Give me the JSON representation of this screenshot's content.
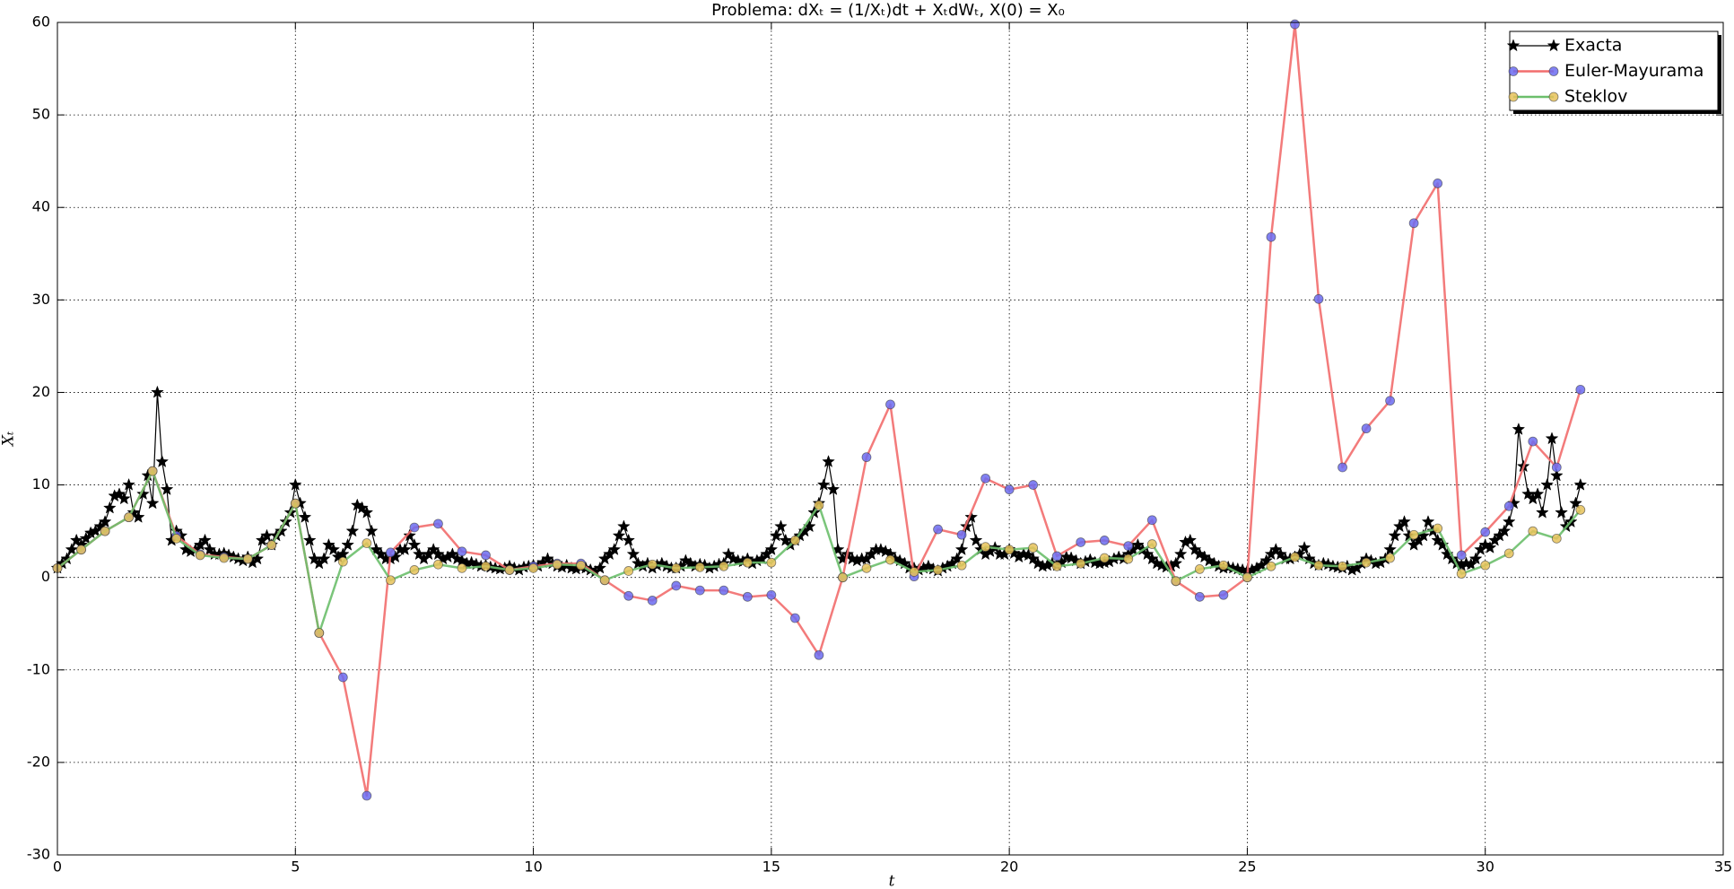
{
  "chart_data": {
    "type": "line",
    "title": "Problema: dXₜ = (1/Xₜ)dt + XₜdWₜ,     X(0) = X₀",
    "x_label": "t",
    "y_label": "Xₜ",
    "xlim": [
      0,
      35
    ],
    "ylim": [
      -30,
      60
    ],
    "xticks": [
      0,
      5,
      10,
      15,
      20,
      25,
      30,
      35
    ],
    "yticks": [
      -30,
      -20,
      -10,
      0,
      10,
      20,
      30,
      40,
      50,
      60
    ],
    "grid": true,
    "legend": "upper right",
    "series": [
      {
        "name": "Exacta",
        "color": "#000000",
        "marker": "star",
        "marker_color": "#000000",
        "x": [
          0,
          0.1,
          0.2,
          0.3,
          0.4,
          0.5,
          0.6,
          0.7,
          0.8,
          0.9,
          1,
          1.1,
          1.2,
          1.3,
          1.4,
          1.5,
          1.6,
          1.7,
          1.8,
          1.9,
          2,
          2.1,
          2.2,
          2.3,
          2.4,
          2.5,
          2.6,
          2.7,
          2.8,
          2.9,
          3,
          3.1,
          3.2,
          3.3,
          3.4,
          3.5,
          3.6,
          3.7,
          3.8,
          3.9,
          4,
          4.1,
          4.2,
          4.3,
          4.4,
          4.5,
          4.6,
          4.7,
          4.8,
          4.9,
          5,
          5.1,
          5.2,
          5.3,
          5.4,
          5.5,
          5.6,
          5.7,
          5.8,
          5.9,
          6,
          6.1,
          6.2,
          6.3,
          6.4,
          6.5,
          6.6,
          6.7,
          6.8,
          6.9,
          7,
          7.1,
          7.2,
          7.3,
          7.4,
          7.5,
          7.6,
          7.7,
          7.8,
          7.9,
          8,
          8.1,
          8.2,
          8.3,
          8.4,
          8.5,
          8.6,
          8.7,
          8.8,
          8.9,
          9,
          9.1,
          9.2,
          9.3,
          9.4,
          9.5,
          9.6,
          9.7,
          9.8,
          9.9,
          10,
          10.1,
          10.2,
          10.3,
          10.4,
          10.5,
          10.6,
          10.7,
          10.8,
          10.9,
          11,
          11.1,
          11.2,
          11.3,
          11.4,
          11.5,
          11.6,
          11.7,
          11.8,
          11.9,
          12,
          12.1,
          12.2,
          12.3,
          12.4,
          12.5,
          12.6,
          12.7,
          12.8,
          12.9,
          13,
          13.1,
          13.2,
          13.3,
          13.4,
          13.5,
          13.6,
          13.7,
          13.8,
          13.9,
          14,
          14.1,
          14.2,
          14.3,
          14.4,
          14.5,
          14.6,
          14.7,
          14.8,
          14.9,
          15,
          15.1,
          15.2,
          15.3,
          15.4,
          15.5,
          15.6,
          15.7,
          15.8,
          15.9,
          16,
          16.1,
          16.2,
          16.3,
          16.4,
          16.5,
          16.6,
          16.7,
          16.8,
          16.9,
          17,
          17.1,
          17.2,
          17.3,
          17.4,
          17.5,
          17.6,
          17.7,
          17.8,
          17.9,
          18,
          18.1,
          18.2,
          18.3,
          18.4,
          18.5,
          18.6,
          18.7,
          18.8,
          18.9,
          19,
          19.1,
          19.2,
          19.3,
          19.4,
          19.5,
          19.6,
          19.7,
          19.8,
          19.9,
          20,
          20.1,
          20.2,
          20.3,
          20.4,
          20.5,
          20.6,
          20.7,
          20.8,
          20.9,
          21,
          21.1,
          21.2,
          21.3,
          21.4,
          21.5,
          21.6,
          21.7,
          21.8,
          21.9,
          22,
          22.1,
          22.2,
          22.3,
          22.4,
          22.5,
          22.6,
          22.7,
          22.8,
          22.9,
          23,
          23.1,
          23.2,
          23.3,
          23.4,
          23.5,
          23.6,
          23.7,
          23.8,
          23.9,
          24,
          24.1,
          24.2,
          24.3,
          24.4,
          24.5,
          24.6,
          24.7,
          24.8,
          24.9,
          25,
          25.1,
          25.2,
          25.3,
          25.4,
          25.5,
          25.6,
          25.7,
          25.8,
          25.9,
          26,
          26.1,
          26.2,
          26.3,
          26.4,
          26.5,
          26.6,
          26.7,
          26.8,
          26.9,
          27,
          27.1,
          27.2,
          27.3,
          27.4,
          27.5,
          27.6,
          27.7,
          27.8,
          27.9,
          28,
          28.1,
          28.2,
          28.3,
          28.4,
          28.5,
          28.6,
          28.7,
          28.8,
          28.9,
          29,
          29.1,
          29.2,
          29.3,
          29.4,
          29.5,
          29.6,
          29.7,
          29.8,
          29.9,
          30,
          30.1,
          30.2,
          30.3,
          30.4,
          30.5,
          30.6,
          30.7,
          30.8,
          30.9,
          31,
          31.1,
          31.2,
          31.3,
          31.4,
          31.5,
          31.6,
          31.7,
          31.8,
          31.9,
          32
        ],
        "values": [
          1,
          1.5,
          2,
          3,
          4,
          3.5,
          4.2,
          4.8,
          5,
          5.5,
          6,
          7.5,
          8.8,
          9,
          8.5,
          10,
          7,
          6.5,
          9,
          11,
          8,
          20,
          12.5,
          9.5,
          4,
          5,
          4.5,
          3,
          2.8,
          3,
          3.5,
          4,
          3,
          2.5,
          2.5,
          2.6,
          2.4,
          2.2,
          2,
          1.8,
          2.2,
          1.6,
          2,
          4,
          4.5,
          3.5,
          4.5,
          5,
          6,
          7,
          10,
          8,
          6.5,
          4,
          2,
          1.5,
          2,
          3.5,
          3,
          2.2,
          2.5,
          3.5,
          5,
          7.8,
          7.5,
          7,
          5,
          3,
          2.5,
          2,
          2,
          2.2,
          3,
          3,
          4.5,
          3.5,
          2.5,
          2,
          2.5,
          3,
          2.5,
          2,
          2.2,
          2.5,
          2,
          1.8,
          1.5,
          1.6,
          1.4,
          1.2,
          1.3,
          1.1,
          1,
          0.9,
          1,
          1.2,
          1,
          0.8,
          1.1,
          1.2,
          1.3,
          1.2,
          1.6,
          2,
          1.5,
          1.2,
          1.1,
          1.3,
          1,
          0.9,
          1.1,
          1,
          0.8,
          0.6,
          1,
          2,
          2.5,
          3,
          4.5,
          5.5,
          4,
          2.5,
          1.5,
          1.2,
          1.5,
          1,
          1.3,
          1.5,
          1.2,
          1,
          1,
          1.2,
          1.8,
          1.5,
          1.2,
          1.4,
          1.3,
          1,
          1.2,
          1.4,
          1.5,
          2.5,
          2,
          1.8,
          1.7,
          2,
          1.5,
          1.8,
          2,
          2.5,
          3,
          4.5,
          5.5,
          4,
          3.5,
          4,
          4.5,
          5,
          5.5,
          7,
          8,
          10,
          12.5,
          9.5,
          3,
          2,
          2.5,
          2,
          1.8,
          2,
          2,
          2.5,
          3,
          3,
          2.8,
          2.5,
          2,
          1.8,
          1.5,
          1,
          1,
          0.8,
          1,
          1.2,
          0.9,
          0.7,
          1,
          1.2,
          1.5,
          2,
          3,
          5.5,
          6.5,
          4,
          3,
          2.5,
          2.8,
          3.2,
          2.5,
          2.5,
          3,
          2.6,
          2.2,
          2.5,
          2.4,
          2,
          1.5,
          1.2,
          1.3,
          1.5,
          1.3,
          1.6,
          2.2,
          2.1,
          1.8,
          1.5,
          1.7,
          1.9,
          1.6,
          1.5,
          1.6,
          1.7,
          2,
          2.2,
          2,
          2.5,
          3,
          3.5,
          3,
          2.5,
          2,
          1.5,
          1.3,
          1.1,
          1.2,
          1.5,
          2.5,
          3.8,
          4,
          3,
          2.5,
          2.2,
          1.8,
          1.5,
          1.2,
          1,
          1.1,
          1,
          0.9,
          0.8,
          0.7,
          0.8,
          1,
          1.3,
          1.8,
          2.5,
          3,
          2.5,
          2,
          2,
          2.2,
          2.5,
          3.2,
          2,
          1.5,
          1.3,
          1.5,
          1.4,
          1.2,
          1.1,
          1,
          1.2,
          0.8,
          1,
          1.5,
          2,
          1.8,
          1.5,
          1.6,
          2,
          3,
          4.5,
          5.5,
          6,
          4.5,
          3.5,
          4,
          4.5,
          6,
          5,
          4,
          3.5,
          2.5,
          2,
          1.5,
          1.3,
          1.5,
          1.4,
          2,
          3,
          3.5,
          3.2,
          4,
          4.5,
          5,
          6,
          8,
          16,
          12,
          9,
          8.5,
          9,
          7,
          10,
          15,
          11,
          7,
          5.5,
          6,
          8,
          10
        ]
      },
      {
        "name": "Euler-Mayurama",
        "color": "#f26d6d",
        "marker": "circle",
        "marker_color": "#6b6bf0",
        "x": [
          0,
          0.5,
          1,
          1.5,
          2,
          2.5,
          3,
          3.5,
          4,
          4.5,
          5,
          5.5,
          6,
          6.5,
          7,
          7.5,
          8,
          8.5,
          9,
          9.5,
          10,
          10.5,
          11,
          11.5,
          12,
          12.5,
          13,
          13.5,
          14,
          14.5,
          15,
          15.5,
          16,
          16.5,
          17,
          17.5,
          18,
          18.5,
          19,
          19.5,
          20,
          20.5,
          21,
          21.5,
          22,
          22.5,
          23,
          23.5,
          24,
          24.5,
          25,
          25.5,
          26,
          26.5,
          27,
          27.5,
          28,
          28.5,
          29,
          29.5,
          30,
          30.5,
          31,
          31.5,
          32
        ],
        "values": [
          1,
          3,
          5,
          6.5,
          11.5,
          4.5,
          2.5,
          2.2,
          2,
          3.5,
          8,
          -6,
          -10.8,
          -23.6,
          2.7,
          5.4,
          5.8,
          2.8,
          2.4,
          0.8,
          1.2,
          1.5,
          1.5,
          -0.3,
          -2,
          -2.5,
          -0.9,
          -1.4,
          -1.4,
          -2.1,
          -1.9,
          -4.4,
          -8.4,
          0,
          13,
          18.7,
          0.1,
          5.2,
          4.6,
          10.7,
          9.5,
          10,
          2.3,
          3.8,
          4,
          3.4,
          6.2,
          -0.4,
          -2.1,
          -1.9,
          0,
          36.8,
          59.8,
          30.1,
          11.9,
          16.1,
          19.1,
          38.3,
          42.6,
          2.4,
          4.9,
          7.7,
          14.7,
          11.9,
          20.3
        ]
      },
      {
        "name": "Steklov",
        "color": "#6cbf6c",
        "marker": "circle",
        "marker_color": "#e6c25a",
        "x": [
          0,
          0.5,
          1,
          1.5,
          2,
          2.5,
          3,
          3.5,
          4,
          4.5,
          5,
          5.5,
          6,
          6.5,
          7,
          7.5,
          8,
          8.5,
          9,
          9.5,
          10,
          10.5,
          11,
          11.5,
          12,
          12.5,
          13,
          13.5,
          14,
          14.5,
          15,
          15.5,
          16,
          16.5,
          17,
          17.5,
          18,
          18.5,
          19,
          19.5,
          20,
          20.5,
          21,
          21.5,
          22,
          22.5,
          23,
          23.5,
          24,
          24.5,
          25,
          25.5,
          26,
          26.5,
          27,
          27.5,
          28,
          28.5,
          29,
          29.5,
          30,
          30.5,
          31,
          31.5,
          32
        ],
        "values": [
          1,
          3,
          5,
          6.5,
          11.5,
          4.2,
          2.4,
          2.1,
          2,
          3.5,
          8,
          -6,
          1.7,
          3.7,
          -0.3,
          0.8,
          1.4,
          1,
          1.2,
          0.8,
          1,
          1.4,
          1.3,
          -0.3,
          0.7,
          1.4,
          1,
          1.1,
          1.2,
          1.6,
          1.6,
          4,
          7.8,
          0,
          1,
          1.9,
          0.6,
          0.8,
          1.3,
          3.3,
          3,
          3.2,
          1.2,
          1.5,
          2.1,
          2,
          3.6,
          -0.4,
          0.9,
          1.3,
          0,
          1.2,
          2.2,
          1.3,
          1.2,
          1.6,
          2.1,
          4.6,
          5.3,
          0.4,
          1.3,
          2.6,
          5,
          4.2,
          7.3
        ]
      }
    ]
  }
}
